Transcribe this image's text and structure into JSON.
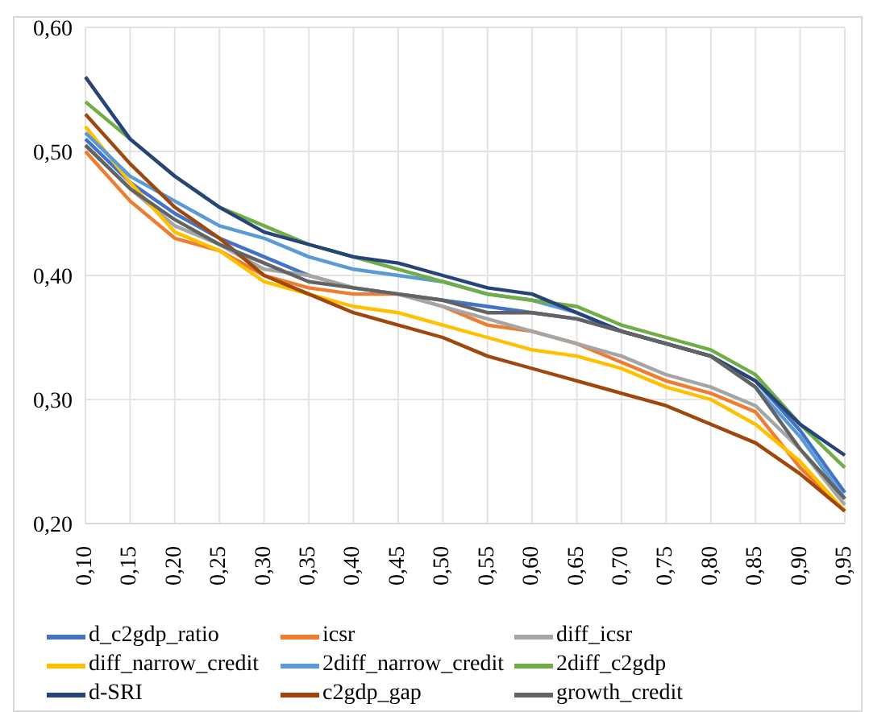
{
  "chart_data": {
    "type": "line",
    "categories": [
      "0,10",
      "0,15",
      "0,20",
      "0,25",
      "0,30",
      "0,35",
      "0,40",
      "0,45",
      "0,50",
      "0,55",
      "0,60",
      "0,65",
      "0,70",
      "0,75",
      "0,80",
      "0,85",
      "0,90",
      "0,95"
    ],
    "series": [
      {
        "name": "d_c2gdp_ratio",
        "color": "#4472c4",
        "values": [
          0.51,
          0.475,
          0.45,
          0.43,
          0.415,
          0.4,
          0.39,
          0.385,
          0.38,
          0.375,
          0.37,
          0.365,
          0.355,
          0.345,
          0.335,
          0.315,
          0.275,
          0.225
        ]
      },
      {
        "name": "icsr",
        "color": "#ed7d31",
        "values": [
          0.5,
          0.46,
          0.43,
          0.42,
          0.4,
          0.39,
          0.385,
          0.385,
          0.375,
          0.36,
          0.355,
          0.345,
          0.33,
          0.315,
          0.305,
          0.29,
          0.245,
          0.21
        ]
      },
      {
        "name": "diff_icsr",
        "color": "#a5a5a5",
        "values": [
          0.505,
          0.47,
          0.44,
          0.425,
          0.405,
          0.4,
          0.39,
          0.385,
          0.375,
          0.365,
          0.355,
          0.345,
          0.335,
          0.32,
          0.31,
          0.295,
          0.26,
          0.215
        ]
      },
      {
        "name": "diff_narrow_credit",
        "color": "#ffc000",
        "values": [
          0.52,
          0.475,
          0.435,
          0.42,
          0.395,
          0.385,
          0.375,
          0.37,
          0.36,
          0.35,
          0.34,
          0.335,
          0.325,
          0.31,
          0.3,
          0.28,
          0.25,
          0.21
        ]
      },
      {
        "name": "2diff_narrow_credit",
        "color": "#5b9bd5",
        "values": [
          0.515,
          0.48,
          0.46,
          0.44,
          0.43,
          0.415,
          0.405,
          0.4,
          0.395,
          0.385,
          0.38,
          0.37,
          0.355,
          0.345,
          0.335,
          0.31,
          0.27,
          0.22
        ]
      },
      {
        "name": "2diff_c2gdp",
        "color": "#70ad47",
        "values": [
          0.54,
          0.51,
          0.48,
          0.455,
          0.44,
          0.425,
          0.415,
          0.405,
          0.395,
          0.385,
          0.38,
          0.375,
          0.36,
          0.35,
          0.34,
          0.32,
          0.28,
          0.245
        ]
      },
      {
        "name": "d-SRI",
        "color": "#264478",
        "values": [
          0.56,
          0.51,
          0.48,
          0.455,
          0.435,
          0.425,
          0.415,
          0.41,
          0.4,
          0.39,
          0.385,
          0.37,
          0.355,
          0.345,
          0.335,
          0.315,
          0.28,
          0.255
        ]
      },
      {
        "name": "c2gdp_gap",
        "color": "#9e480e",
        "values": [
          0.53,
          0.49,
          0.455,
          0.43,
          0.4,
          0.385,
          0.37,
          0.36,
          0.35,
          0.335,
          0.325,
          0.315,
          0.305,
          0.295,
          0.28,
          0.265,
          0.24,
          0.21
        ]
      },
      {
        "name": "growth_credit",
        "color": "#636363",
        "values": [
          0.505,
          0.47,
          0.445,
          0.425,
          0.41,
          0.395,
          0.39,
          0.385,
          0.38,
          0.37,
          0.37,
          0.365,
          0.355,
          0.345,
          0.335,
          0.31,
          0.26,
          0.22
        ]
      }
    ],
    "ylim": [
      0.2,
      0.6
    ],
    "yticks": [
      {
        "value": 0.2,
        "label": "0,20"
      },
      {
        "value": 0.3,
        "label": "0,30"
      },
      {
        "value": 0.4,
        "label": "0,40"
      },
      {
        "value": 0.5,
        "label": "0,50"
      },
      {
        "value": 0.6,
        "label": "0,60"
      }
    ],
    "grid": true,
    "legend": "bottom",
    "marker": "none",
    "line_style": "solid"
  }
}
